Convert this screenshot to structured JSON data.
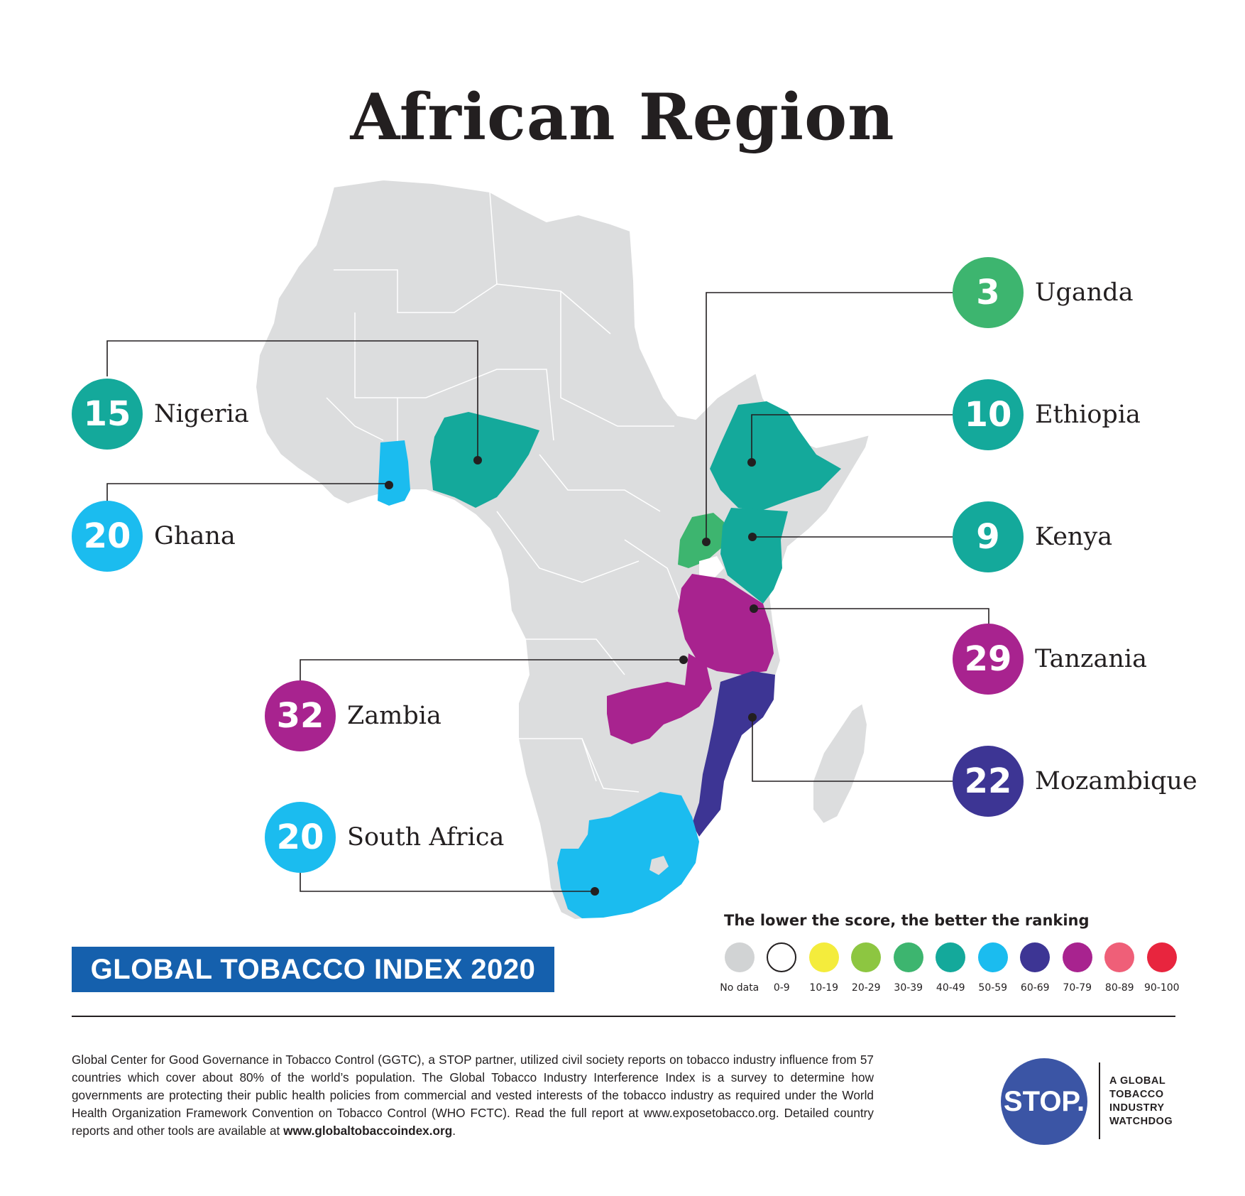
{
  "title": "African Region",
  "map": {
    "land_color": "#dcddde",
    "border_color": "#ffffff",
    "countries": [
      {
        "name": "Uganda",
        "score": "3",
        "color": "#3db56f"
      },
      {
        "name": "Nigeria",
        "score": "15",
        "color": "#14a99b"
      },
      {
        "name": "Ethiopia",
        "score": "10",
        "color": "#14a99b"
      },
      {
        "name": "Ghana",
        "score": "20",
        "color": "#1bbcef"
      },
      {
        "name": "Kenya",
        "score": "9",
        "color": "#14a99b"
      },
      {
        "name": "Tanzania",
        "score": "29",
        "color": "#a8238f"
      },
      {
        "name": "Zambia",
        "score": "32",
        "color": "#a8238f"
      },
      {
        "name": "Mozambique",
        "score": "22",
        "color": "#3d3594"
      },
      {
        "name": "South Africa",
        "score": "20",
        "color": "#1bbcef"
      }
    ]
  },
  "legend": {
    "title": "The lower the score, the better the ranking",
    "items": [
      {
        "label": "No data",
        "color": "#d1d3d4"
      },
      {
        "label": "0-9",
        "color": "#ffffff"
      },
      {
        "label": "10-19",
        "color": "#f4ec3c"
      },
      {
        "label": "20-29",
        "color": "#8dc641"
      },
      {
        "label": "30-39",
        "color": "#3db56f"
      },
      {
        "label": "40-49",
        "color": "#14a99b"
      },
      {
        "label": "50-59",
        "color": "#1bbcef"
      },
      {
        "label": "60-69",
        "color": "#3d3594"
      },
      {
        "label": "70-79",
        "color": "#a8238f"
      },
      {
        "label": "80-89",
        "color": "#ef5f78"
      },
      {
        "label": "90-100",
        "color": "#e8253e"
      }
    ]
  },
  "banner": "GLOBAL TOBACCO INDEX 2020",
  "footer": {
    "text": "Global Center for Good Governance in Tobacco Control (GGTC), a STOP partner, utilized civil society reports on tobacco industry influence from 57 countries which cover about 80% of the world’s population. The Global Tobacco Industry Interference Index is a survey to determine how governments are protecting their public health policies from commercial and vested interests of the tobacco industry as required under the World Health Organization Framework Convention on Tobacco Control (WHO FCTC). Read the full report at www.exposetobacco.org. Detailed country reports and other tools are available at ",
    "link": "www.globaltobaccoindex.org",
    "end": "."
  },
  "logo": {
    "mark": "STOP.",
    "tagline": [
      "A GLOBAL",
      "TOBACCO",
      "INDUSTRY",
      "WATCHDOG"
    ]
  }
}
